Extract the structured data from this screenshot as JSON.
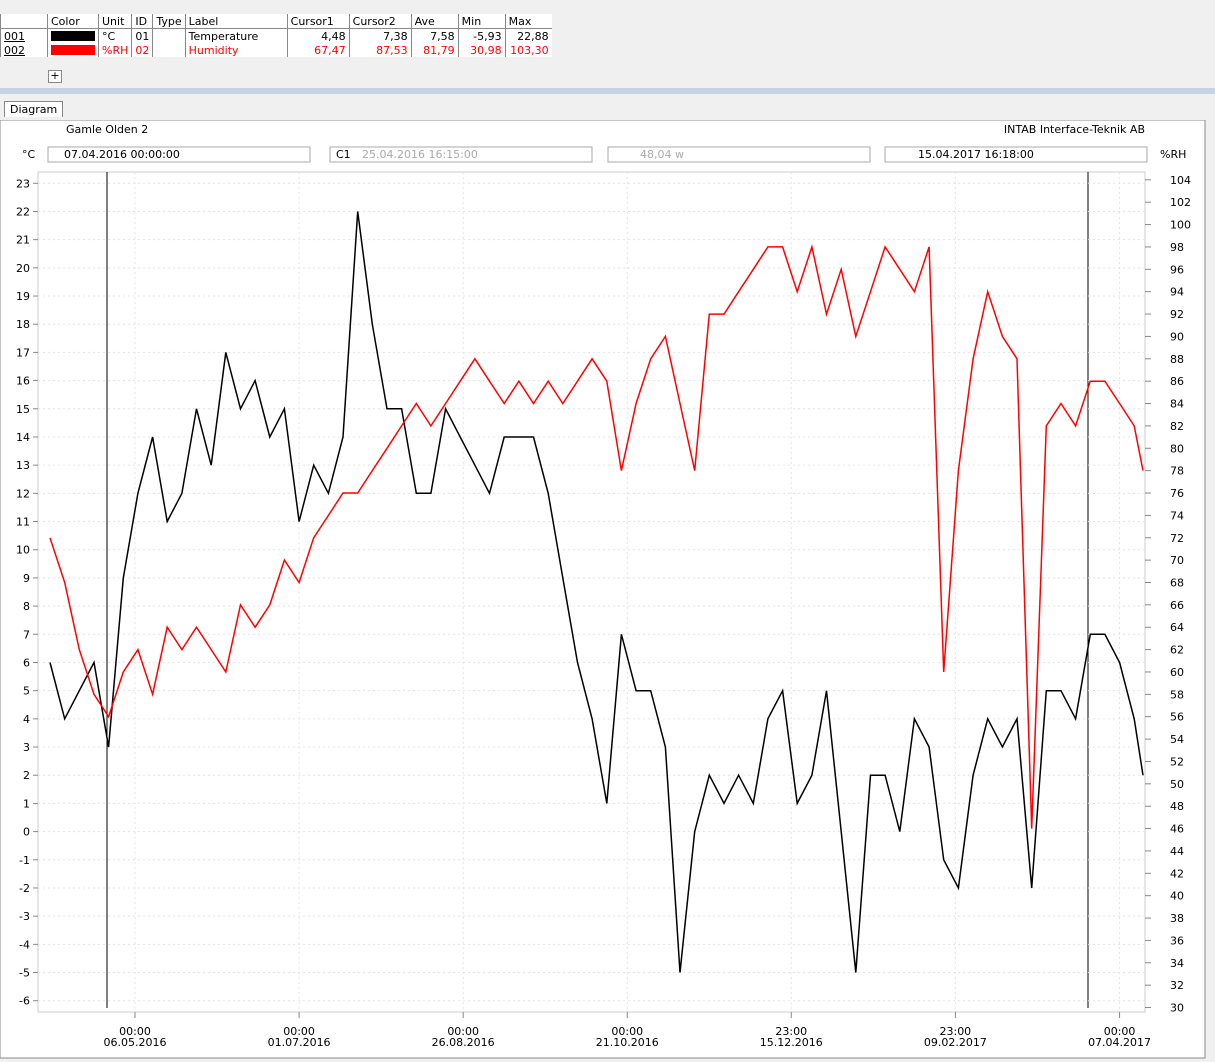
{
  "table": {
    "columns": [
      "Color",
      "Unit",
      "ID",
      "Type",
      "Label",
      "Cursor1",
      "Cursor2",
      "Ave",
      "Min",
      "Max"
    ],
    "rows": [
      [
        "001",
        "°C",
        "01",
        "",
        "Temperature",
        "4,48",
        "7,38",
        "7,58",
        "-5,93",
        "22,88"
      ],
      [
        "002",
        "%RH",
        "02",
        "",
        "Humidity",
        "67,47",
        "87,53",
        "81,79",
        "30,98",
        "103,30"
      ]
    ],
    "add_button": "+"
  },
  "tab": "Diagram",
  "chart_data": {
    "type": "line",
    "title": "Gamle Olden 2",
    "subtitle": "INTAB Interface-Teknik AB",
    "toolbar": {
      "start": "07.04.2016 00:00:00",
      "cursor": "C1",
      "cursor_time": "25.04.2016 16:15:00",
      "span": "48,04 w",
      "end": "15.04.2017 16:18:00"
    },
    "ylabel": "°C",
    "y2label": "%RH",
    "x": [
      "2016-04-07",
      "2016-04-12",
      "2016-04-17",
      "2016-04-22",
      "2016-04-27",
      "2016-05-02",
      "2016-05-07",
      "2016-05-12",
      "2016-05-17",
      "2016-05-22",
      "2016-05-27",
      "2016-06-01",
      "2016-06-06",
      "2016-06-11",
      "2016-06-16",
      "2016-06-21",
      "2016-06-26",
      "2016-07-01",
      "2016-07-06",
      "2016-07-11",
      "2016-07-16",
      "2016-07-21",
      "2016-07-26",
      "2016-07-31",
      "2016-08-05",
      "2016-08-10",
      "2016-08-15",
      "2016-08-20",
      "2016-08-25",
      "2016-08-30",
      "2016-09-04",
      "2016-09-09",
      "2016-09-14",
      "2016-09-19",
      "2016-09-24",
      "2016-09-29",
      "2016-10-04",
      "2016-10-09",
      "2016-10-14",
      "2016-10-19",
      "2016-10-24",
      "2016-10-29",
      "2016-11-03",
      "2016-11-08",
      "2016-11-13",
      "2016-11-18",
      "2016-11-23",
      "2016-11-28",
      "2016-12-03",
      "2016-12-08",
      "2016-12-13",
      "2016-12-18",
      "2016-12-23",
      "2016-12-28",
      "2017-01-02",
      "2017-01-07",
      "2017-01-12",
      "2017-01-17",
      "2017-01-22",
      "2017-01-27",
      "2017-02-01",
      "2017-02-06",
      "2017-02-11",
      "2017-02-16",
      "2017-02-21",
      "2017-02-26",
      "2017-03-03",
      "2017-03-08",
      "2017-03-13",
      "2017-03-18",
      "2017-03-23",
      "2017-03-28",
      "2017-04-02",
      "2017-04-07",
      "2017-04-12",
      "2017-04-15"
    ],
    "series": [
      {
        "name": "Temperature",
        "color": "#000000",
        "values": [
          6,
          4,
          5,
          6,
          3,
          9,
          12,
          14,
          11,
          12,
          15,
          13,
          17,
          15,
          16,
          14,
          15,
          11,
          13,
          12,
          14,
          22,
          18,
          15,
          15,
          12,
          12,
          15,
          14,
          13,
          12,
          14,
          14,
          14,
          12,
          9,
          6,
          4,
          1,
          7,
          5,
          5,
          3,
          -5,
          0,
          2,
          1,
          2,
          1,
          4,
          5,
          1,
          2,
          5,
          0,
          -5,
          2,
          2,
          0,
          4,
          3,
          -1,
          -2,
          2,
          4,
          3,
          4,
          -2,
          5,
          5,
          4,
          7,
          7,
          6,
          4,
          2
        ]
      },
      {
        "name": "Humidity",
        "color": "#ff0000",
        "axis": "y2",
        "values": [
          72,
          68,
          62,
          58,
          56,
          60,
          62,
          58,
          64,
          62,
          64,
          62,
          60,
          66,
          64,
          66,
          70,
          68,
          72,
          74,
          76,
          76,
          78,
          80,
          82,
          84,
          82,
          84,
          86,
          88,
          86,
          84,
          86,
          84,
          86,
          84,
          86,
          88,
          86,
          78,
          84,
          88,
          90,
          84,
          78,
          92,
          92,
          94,
          96,
          98,
          98,
          94,
          98,
          92,
          96,
          90,
          94,
          98,
          96,
          94,
          98,
          60,
          78,
          88,
          94,
          90,
          88,
          46,
          82,
          84,
          82,
          86,
          86,
          84,
          82,
          78
        ]
      }
    ],
    "xlim": [
      "2016-04-07T00:00",
      "2017-04-15T16:18"
    ],
    "xticks": [
      {
        "value": "2016-05-06T00:00",
        "label": "00:00\n06.05.2016"
      },
      {
        "value": "2016-07-01T00:00",
        "label": "00:00\n01.07.2016"
      },
      {
        "value": "2016-08-26T00:00",
        "label": "00:00\n26.08.2016"
      },
      {
        "value": "2016-10-21T00:00",
        "label": "00:00\n21.10.2016"
      },
      {
        "value": "2016-12-15T23:00",
        "label": "23:00\n15.12.2016"
      },
      {
        "value": "2017-02-09T23:00",
        "label": "23:00\n09.02.2017"
      },
      {
        "value": "2017-04-07T00:00",
        "label": "00:00\n07.04.2017"
      }
    ],
    "ylim": [
      -6.4,
      23.4
    ],
    "yticks": [
      -6,
      -5,
      -4,
      -3,
      -2,
      -1,
      0,
      1,
      2,
      3,
      4,
      5,
      6,
      7,
      8,
      9,
      10,
      11,
      12,
      13,
      14,
      15,
      16,
      17,
      18,
      19,
      20,
      21,
      22,
      23
    ],
    "y2lim": [
      29.6,
      104.7
    ],
    "y2ticks": [
      30,
      32,
      34,
      36,
      38,
      40,
      42,
      44,
      46,
      48,
      50,
      52,
      54,
      56,
      58,
      60,
      62,
      64,
      66,
      68,
      70,
      72,
      74,
      76,
      78,
      80,
      82,
      84,
      86,
      88,
      90,
      92,
      94,
      96,
      98,
      100,
      102,
      104
    ],
    "grid": true
  }
}
